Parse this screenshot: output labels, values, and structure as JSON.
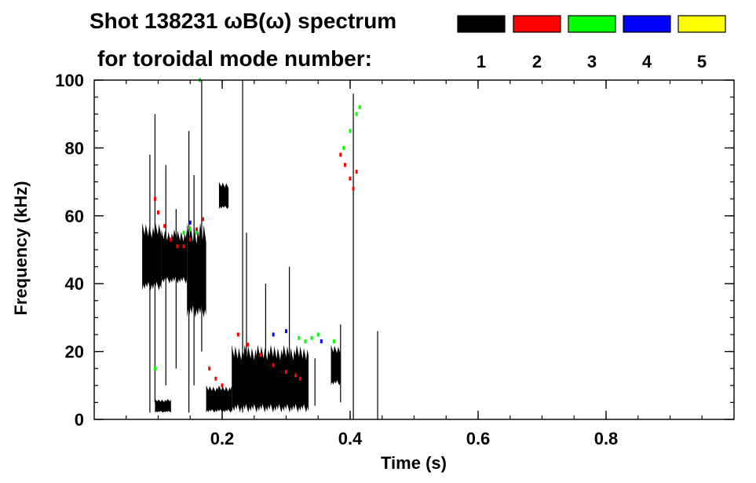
{
  "chart_data": {
    "type": "heatmap",
    "title": "Shot 138231 ωB(ω) spectrum",
    "subtitle": "for toroidal mode number:",
    "xlabel": "Time (s)",
    "ylabel": "Frequency (kHz)",
    "xlim": [
      0,
      1
    ],
    "ylim": [
      0,
      100
    ],
    "x_ticks": [
      {
        "value": 0.2,
        "label": "0.2"
      },
      {
        "value": 0.4,
        "label": "0.4"
      },
      {
        "value": 0.6,
        "label": "0.6"
      },
      {
        "value": 0.8,
        "label": "0.8"
      }
    ],
    "y_ticks": [
      {
        "value": 0,
        "label": "0"
      },
      {
        "value": 20,
        "label": "20"
      },
      {
        "value": 40,
        "label": "40"
      },
      {
        "value": 60,
        "label": "60"
      },
      {
        "value": 80,
        "label": "80"
      },
      {
        "value": 100,
        "label": "100"
      }
    ],
    "legend_placement": "top",
    "legend": [
      {
        "label": "1",
        "color": "#000000"
      },
      {
        "label": "2",
        "color": "#ff0000"
      },
      {
        "label": "3",
        "color": "#00ff00"
      },
      {
        "label": "4",
        "color": "#0000ff"
      },
      {
        "label": "5",
        "color": "#ffff00"
      }
    ],
    "series": [
      {
        "mode": "1",
        "color": "#000000",
        "regions": [
          {
            "t0": 0.075,
            "t1": 0.105,
            "f0": 38,
            "f1": 58
          },
          {
            "t0": 0.105,
            "t1": 0.145,
            "f0": 40,
            "f1": 56
          },
          {
            "t0": 0.145,
            "t1": 0.175,
            "f0": 30,
            "f1": 58
          },
          {
            "t0": 0.175,
            "t1": 0.215,
            "f0": 2,
            "f1": 10
          },
          {
            "t0": 0.215,
            "t1": 0.335,
            "f0": 2,
            "f1": 22
          },
          {
            "t0": 0.195,
            "t1": 0.21,
            "f0": 62,
            "f1": 70
          },
          {
            "t0": 0.37,
            "t1": 0.385,
            "f0": 10,
            "f1": 22
          },
          {
            "t0": 0.095,
            "t1": 0.12,
            "f0": 2,
            "f1": 6
          }
        ],
        "lines": [
          {
            "t": 0.087,
            "f0": 2,
            "f1": 78
          },
          {
            "t": 0.095,
            "f0": 5,
            "f1": 90
          },
          {
            "t": 0.112,
            "f0": 10,
            "f1": 75
          },
          {
            "t": 0.128,
            "f0": 15,
            "f1": 62
          },
          {
            "t": 0.148,
            "f0": 2,
            "f1": 85
          },
          {
            "t": 0.156,
            "f0": 10,
            "f1": 72
          },
          {
            "t": 0.168,
            "f0": 20,
            "f1": 100
          },
          {
            "t": 0.232,
            "f0": 2,
            "f1": 100
          },
          {
            "t": 0.238,
            "f0": 5,
            "f1": 55
          },
          {
            "t": 0.268,
            "f0": 8,
            "f1": 40
          },
          {
            "t": 0.305,
            "f0": 10,
            "f1": 45
          },
          {
            "t": 0.345,
            "f0": 4,
            "f1": 18
          },
          {
            "t": 0.385,
            "f0": 5,
            "f1": 28
          },
          {
            "t": 0.405,
            "f0": 0,
            "f1": 96
          },
          {
            "t": 0.443,
            "f0": 0,
            "f1": 26
          }
        ]
      },
      {
        "mode": "2",
        "color": "#ff0000",
        "points": [
          [
            0.095,
            65
          ],
          [
            0.1,
            61
          ],
          [
            0.11,
            57
          ],
          [
            0.12,
            53
          ],
          [
            0.13,
            51
          ],
          [
            0.14,
            51
          ],
          [
            0.15,
            53
          ],
          [
            0.16,
            56
          ],
          [
            0.17,
            59
          ],
          [
            0.18,
            15
          ],
          [
            0.19,
            12
          ],
          [
            0.2,
            10
          ],
          [
            0.225,
            25
          ],
          [
            0.24,
            22
          ],
          [
            0.26,
            19
          ],
          [
            0.28,
            16
          ],
          [
            0.3,
            14
          ],
          [
            0.315,
            13
          ],
          [
            0.322,
            12
          ],
          [
            0.385,
            78
          ],
          [
            0.392,
            75
          ],
          [
            0.4,
            71
          ],
          [
            0.405,
            68
          ],
          [
            0.41,
            73
          ]
        ]
      },
      {
        "mode": "3",
        "color": "#00ff00",
        "points": [
          [
            0.14,
            55
          ],
          [
            0.15,
            56
          ],
          [
            0.16,
            55
          ],
          [
            0.32,
            24
          ],
          [
            0.33,
            23
          ],
          [
            0.34,
            24
          ],
          [
            0.35,
            25
          ],
          [
            0.375,
            23
          ],
          [
            0.39,
            80
          ],
          [
            0.4,
            85
          ],
          [
            0.41,
            90
          ],
          [
            0.415,
            92
          ],
          [
            0.095,
            15
          ],
          [
            0.165,
            100
          ]
        ]
      },
      {
        "mode": "4",
        "color": "#0000ff",
        "points": [
          [
            0.15,
            58
          ],
          [
            0.3,
            26
          ],
          [
            0.28,
            25
          ],
          [
            0.355,
            23
          ]
        ]
      }
    ]
  }
}
